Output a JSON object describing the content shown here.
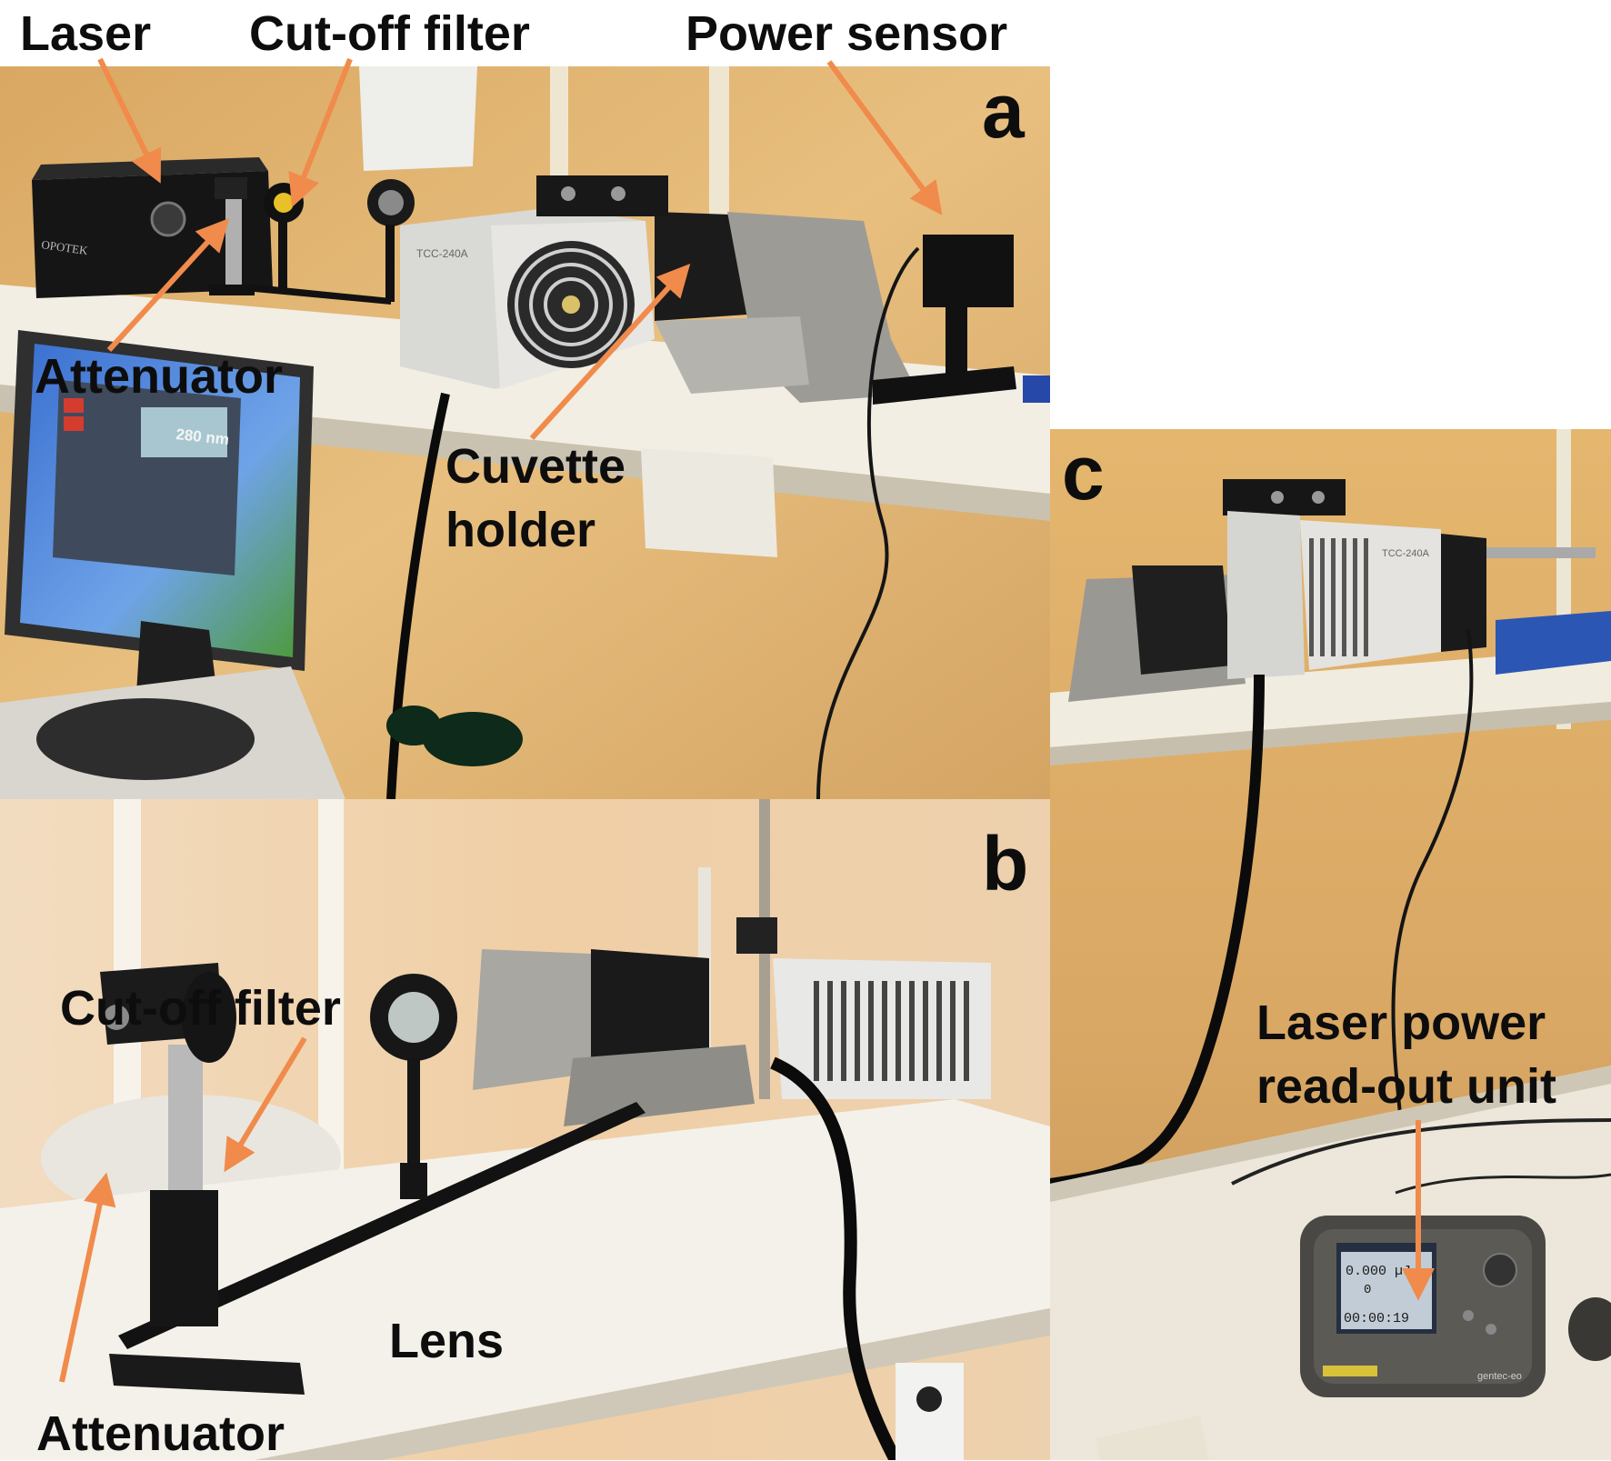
{
  "figure": {
    "panels": [
      {
        "letter": "a"
      },
      {
        "letter": "b"
      },
      {
        "letter": "c"
      }
    ],
    "labels_a": {
      "laser": "Laser",
      "cutoff_filter": "Cut-off filter",
      "power_sensor": "Power sensor",
      "attenuator": "Attenuator",
      "cuvette_holder_line1": "Cuvette",
      "cuvette_holder_line2": "holder"
    },
    "labels_b": {
      "cutoff_filter": "Cut-off filter",
      "lens": "Lens",
      "attenuator": "Attenuator"
    },
    "labels_c": {
      "readout_line1": "Laser power",
      "readout_line2": "read-out unit"
    },
    "screen_texts": {
      "monitor_wavelength": "280 nm",
      "device_model_a": "TCC-240A",
      "device_model_c": "TCC-240A",
      "laser_brand": "OPOTEK",
      "meter_energy": "0.000 µJ",
      "meter_count": "0",
      "meter_time": "00:00:19",
      "meter_brand": "gentec-eo"
    },
    "colors": {
      "arrow": "#f08b4c",
      "label_text": "#0d0d0d",
      "wall": "#e3b874",
      "shelf": "#f1ece0"
    }
  }
}
